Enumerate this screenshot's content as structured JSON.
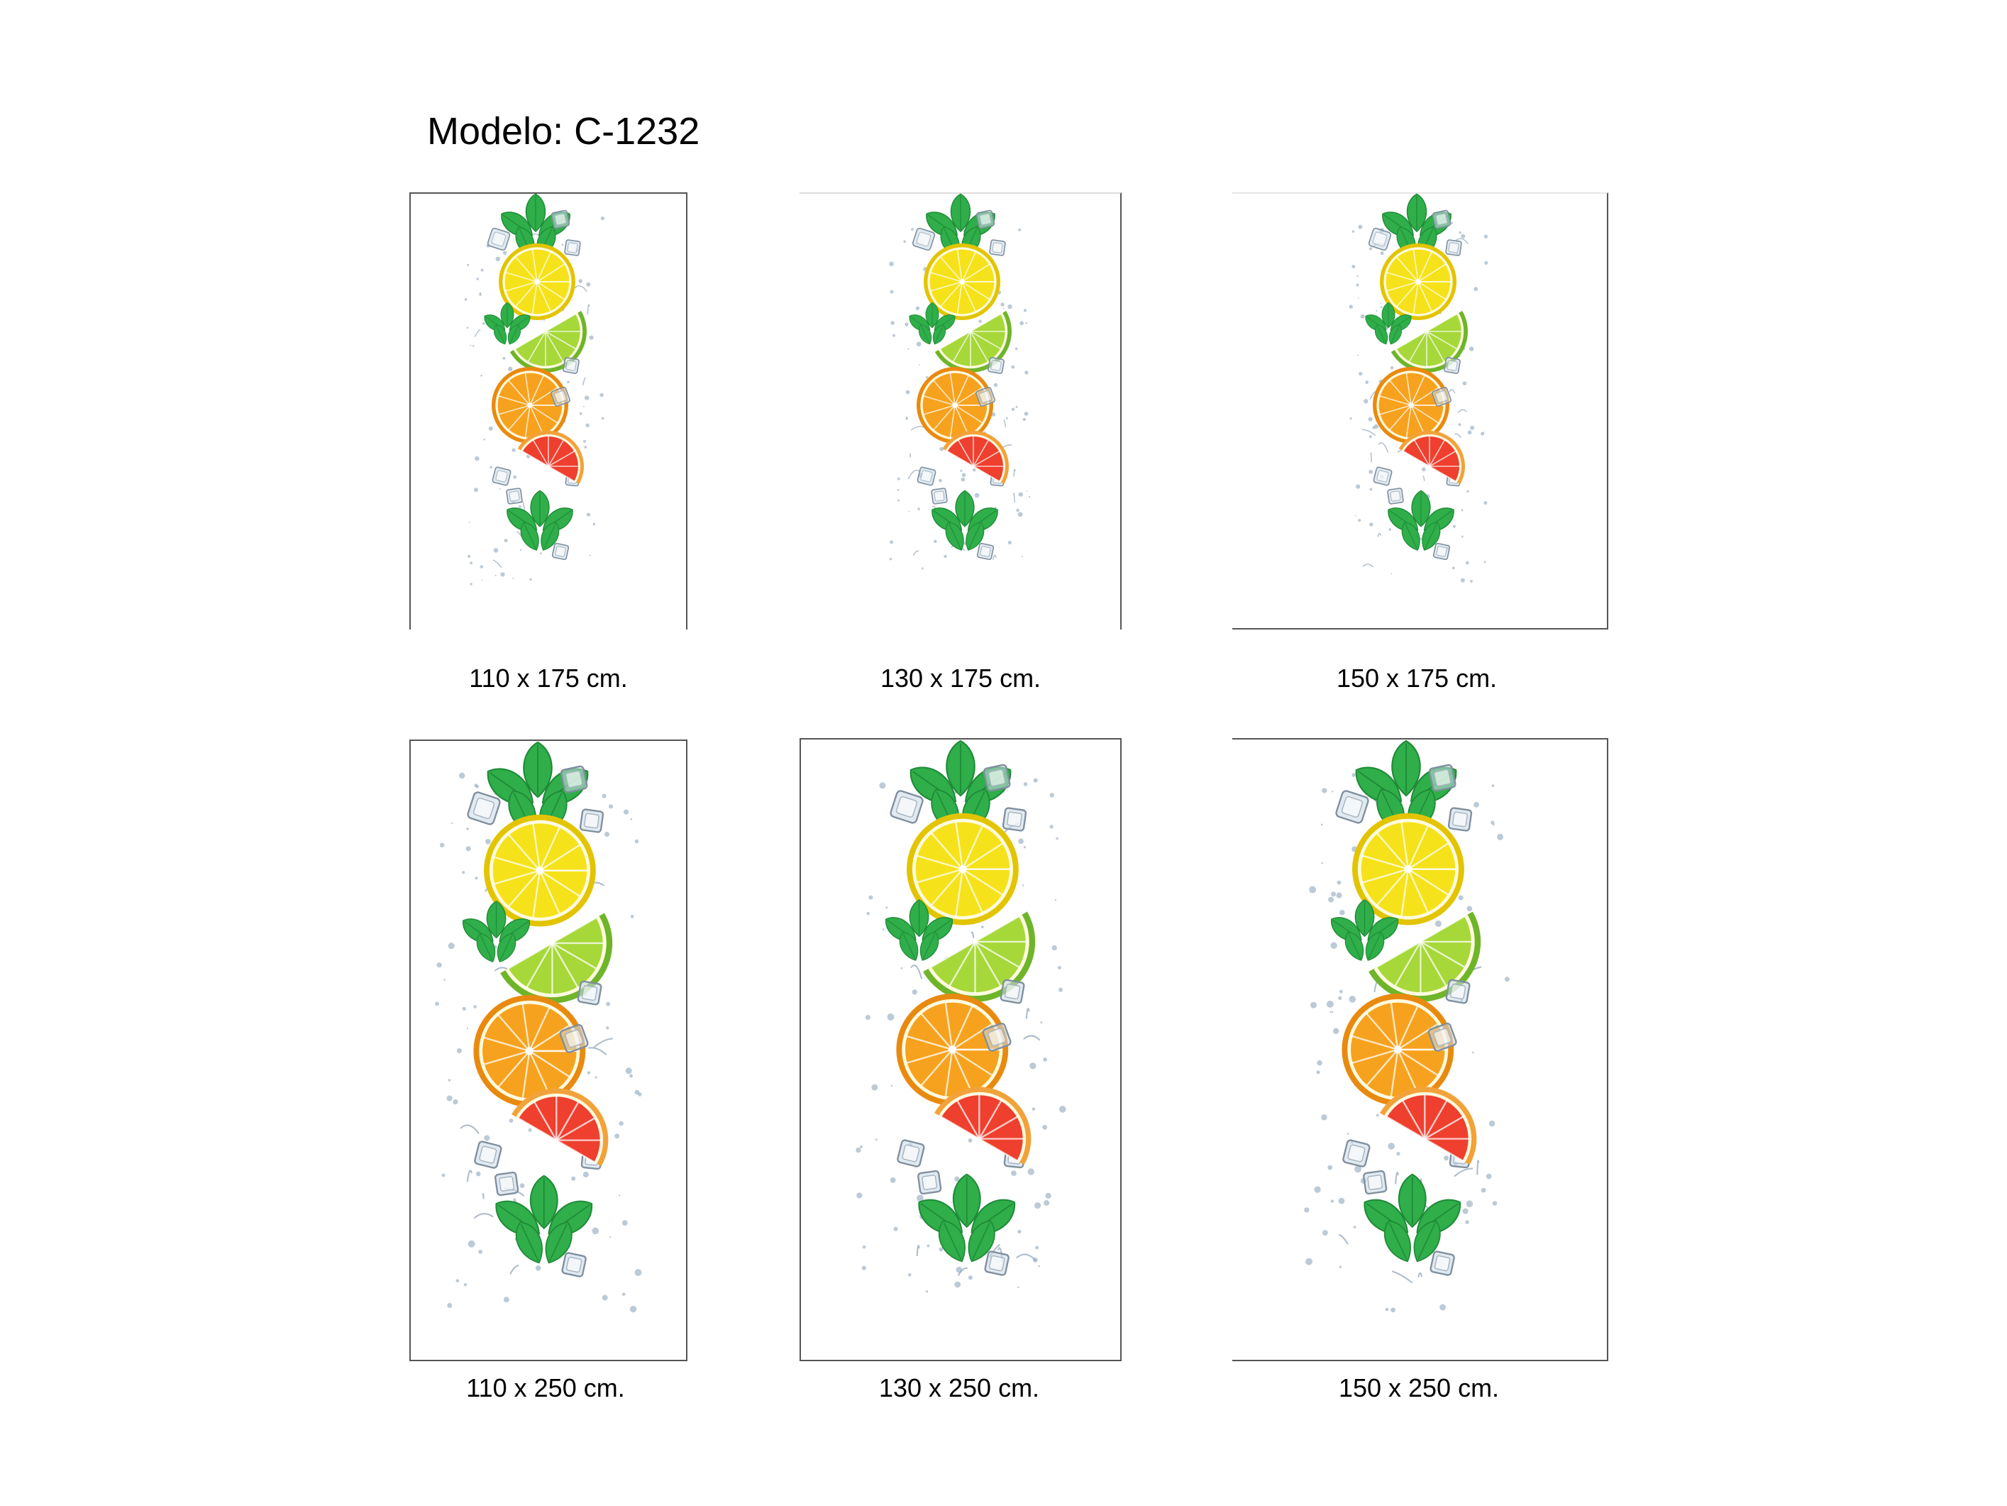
{
  "title": "Modelo: C-1232",
  "panels": [
    {
      "size_label": "110 x 175 cm."
    },
    {
      "size_label": "130 x 175 cm."
    },
    {
      "size_label": "150 x 175 cm."
    },
    {
      "size_label": "110 x 250 cm."
    },
    {
      "size_label": "130 x 250 cm."
    },
    {
      "size_label": "150 x 250 cm."
    }
  ],
  "artwork": {
    "subject": "citrus slices with mint leaves, ice cubes and water splash",
    "fruits": [
      "lemon",
      "lime",
      "orange",
      "grapefruit"
    ],
    "colors": {
      "lemon": "#f6e21a",
      "lime": "#a6d83a",
      "orange": "#f7a21e",
      "grapefruit": "#ef3f2e",
      "mint": "#2fae4a",
      "ice": "#c9d9e6"
    }
  }
}
